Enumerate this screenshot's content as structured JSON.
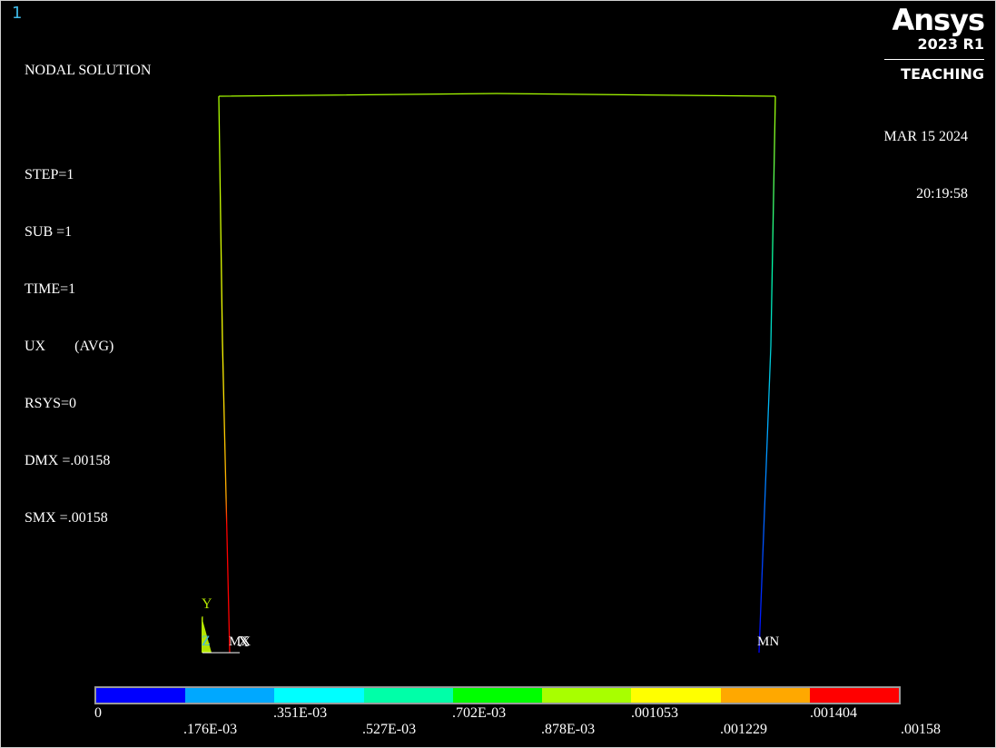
{
  "window": {
    "number": "1"
  },
  "info": {
    "title": "NODAL SOLUTION",
    "lines": [
      "STEP=1",
      "SUB =1",
      "TIME=1",
      "UX        (AVG)",
      "RSYS=0",
      "DMX =.00158",
      "SMX =.00158"
    ]
  },
  "datetime": {
    "date": "MAR 15 2024",
    "time": "20:19:58"
  },
  "logo": {
    "brand": "Ansys",
    "version": "2023 R1",
    "edition": "TEACHING"
  },
  "triad": {
    "y_label": "Y",
    "z_label": "Z",
    "x_label": "X"
  },
  "markers": {
    "mx": "MX",
    "mn": "MN"
  },
  "legend": {
    "colors": [
      "#0000ff",
      "#00a8ff",
      "#00ffff",
      "#00ffa8",
      "#00ff00",
      "#a8ff00",
      "#ffff00",
      "#ffa800",
      "#ff0000"
    ],
    "top_labels": [
      "0",
      ".351E-03",
      ".702E-03",
      ".001053",
      ".001404"
    ],
    "bottom_labels": [
      ".176E-03",
      ".527E-03",
      ".878E-03",
      ".001229",
      ".00158"
    ]
  }
}
